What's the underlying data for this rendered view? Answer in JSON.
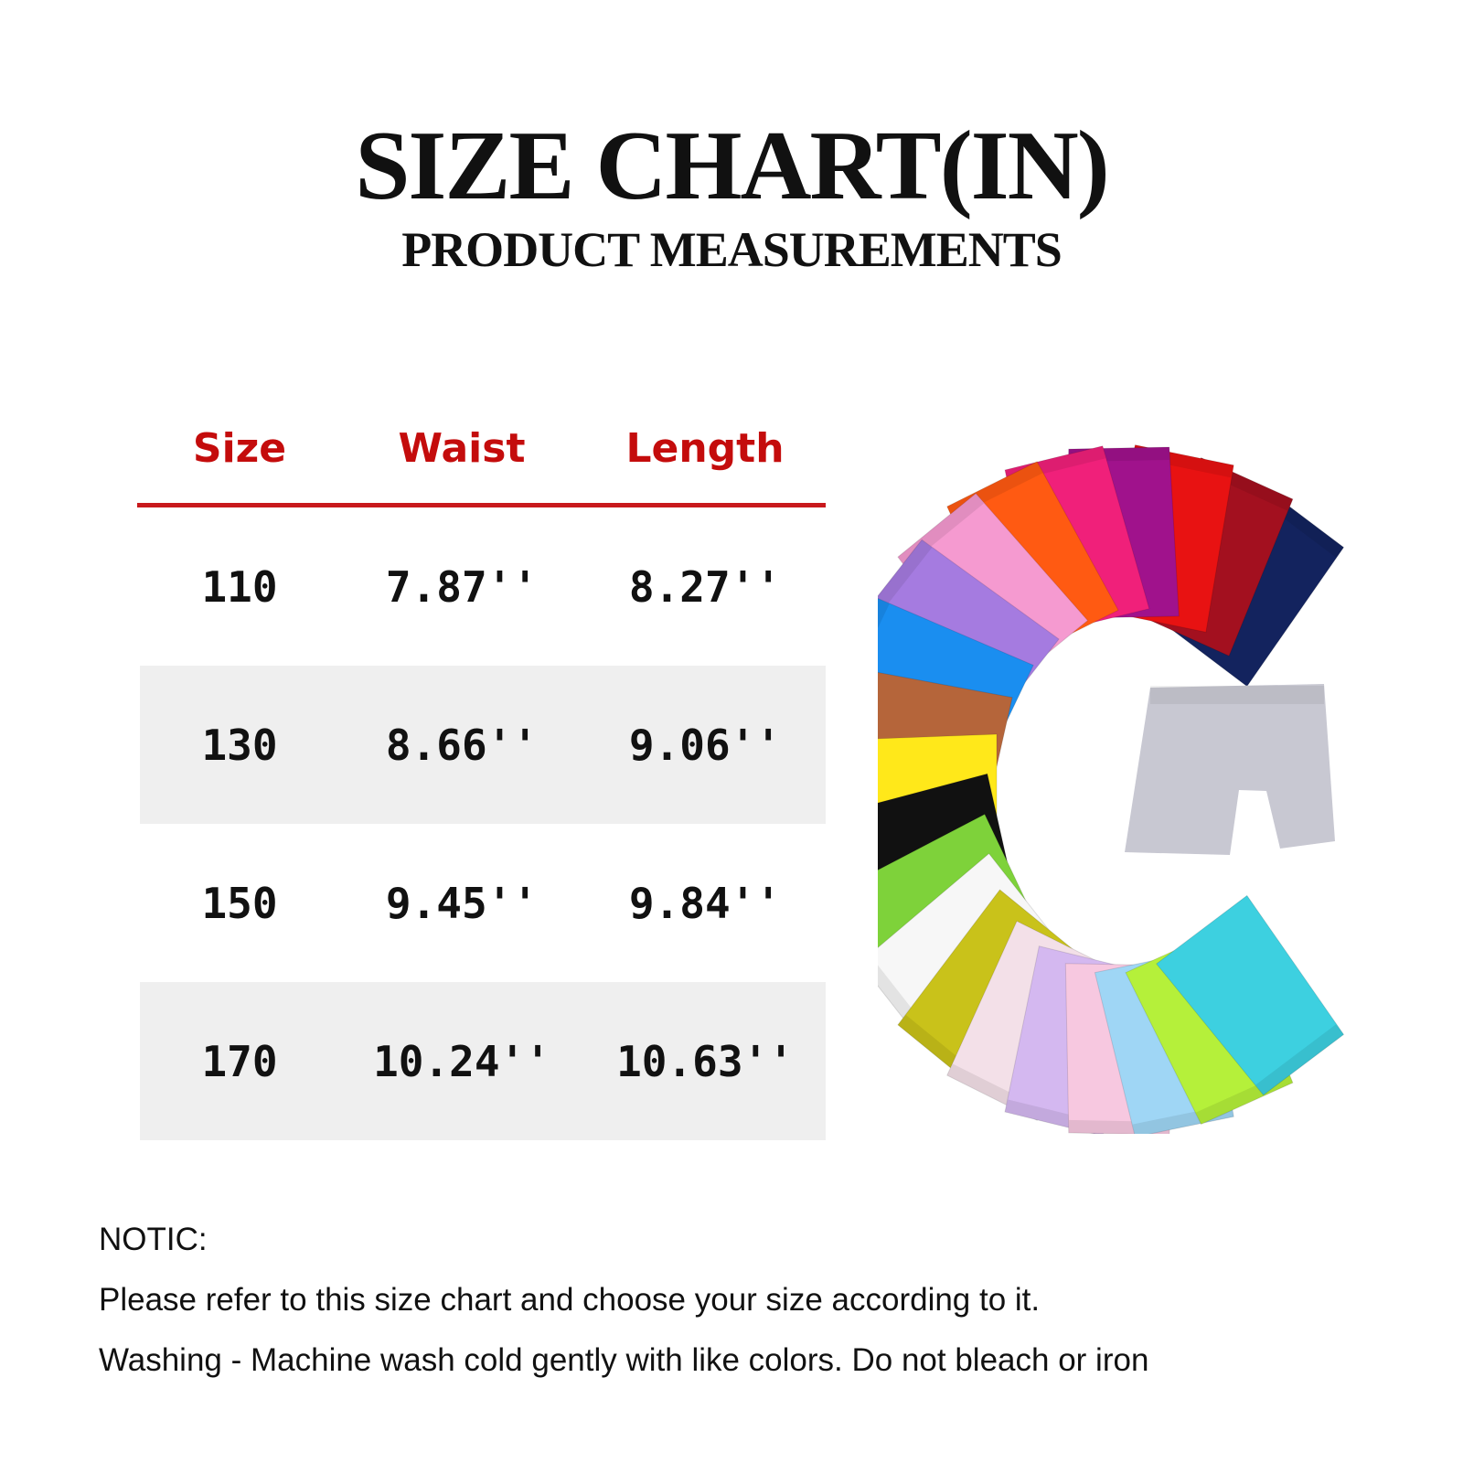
{
  "header": {
    "title": "SIZE CHART(IN)",
    "subtitle": "PRODUCT MEASUREMENTS"
  },
  "table": {
    "columns": [
      "Size",
      "Waist",
      "Length"
    ],
    "rows": [
      [
        "110",
        "7.87''",
        "8.27''"
      ],
      [
        "130",
        "8.66''",
        "9.06''"
      ],
      [
        "150",
        "9.45''",
        "9.84''"
      ],
      [
        "170",
        "10.24''",
        "10.63''"
      ]
    ],
    "header_color": "#c40c0c"
  },
  "notes": {
    "heading": "NOTIC:",
    "lines": [
      "Please refer to this size chart and choose your size according to it.",
      "Washing - Machine wash cold gently with like colors. Do not bleach or iron"
    ]
  },
  "product_image": {
    "shorts_colors": [
      "#13235e",
      "#a3101f",
      "#e81212",
      "#a0128c",
      "#f0207a",
      "#ff5a12",
      "#f59ad0",
      "#a57be0",
      "#1a8ef0",
      "#b5653a",
      "#ffe81a",
      "#111111",
      "#7ed23a",
      "#f7f7f7",
      "#c9c21a",
      "#f3e0e8",
      "#d4b8f0",
      "#f7c8e0",
      "#9fd6f5",
      "#b5f03a",
      "#3dd0e0"
    ],
    "center_color": "#c8c8d2"
  }
}
